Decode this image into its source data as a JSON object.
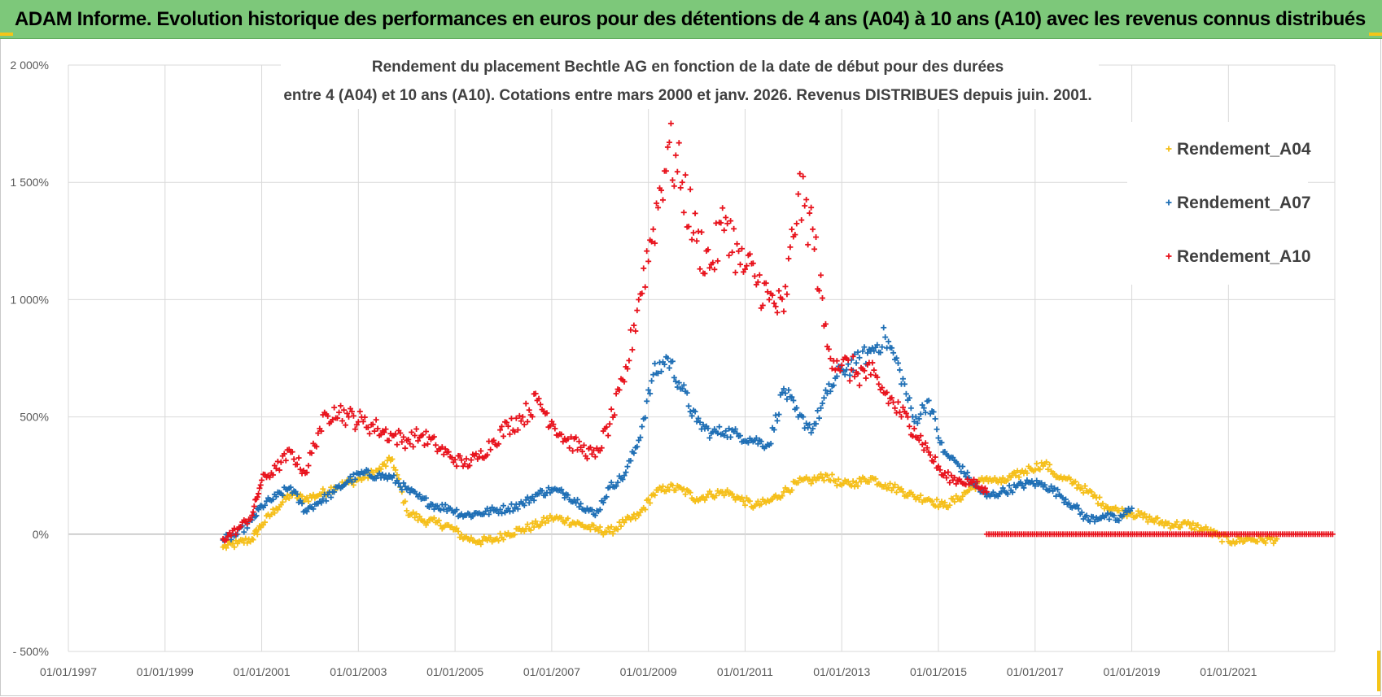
{
  "banner": {
    "title": "ADAM Informe. Evolution historique des performances en euros pour des détentions de 4 ans (A04) à 10 ans (A10) avec les revenus connus distribués"
  },
  "chart_data": {
    "type": "scatter",
    "title_line1": "Rendement du placement Bechtle AG en fonction de la date de début pour des durées",
    "title_line2": "entre 4 (A04) et 10 ans (A10). Cotations entre mars 2000 et janv. 2026. Revenus DISTRIBUES depuis juin. 2001.",
    "xlabel": "",
    "ylabel": "",
    "xlim": [
      1997.0,
      2023.2
    ],
    "ylim": [
      -500,
      2000
    ],
    "grid": true,
    "legend_position": "top-right",
    "x_tick_values": [
      1997,
      1999,
      2001,
      2003,
      2005,
      2007,
      2009,
      2011,
      2013,
      2015,
      2017,
      2019,
      2021
    ],
    "x_tick_labels": [
      "01/01/1997",
      "01/01/1999",
      "01/01/2001",
      "01/01/2003",
      "01/01/2005",
      "01/01/2007",
      "01/01/2009",
      "01/01/2011",
      "01/01/2013",
      "01/01/2015",
      "01/01/2017",
      "01/01/2019",
      "01/01/2021"
    ],
    "y_tick_values": [
      2000,
      1500,
      1000,
      500,
      0,
      -500
    ],
    "y_tick_labels": [
      "2 000%",
      "1 500%",
      "1 000%",
      "500%",
      "0%",
      "- 500%"
    ],
    "series": [
      {
        "name": "Rendement_A04",
        "color": "#f5bf1a",
        "marker": "+",
        "x": [
          2000.2,
          2000.5,
          2000.8,
          2001.0,
          2001.3,
          2001.6,
          2001.9,
          2002.2,
          2002.5,
          2002.8,
          2003.1,
          2003.4,
          2003.7,
          2004.0,
          2004.3,
          2004.6,
          2004.9,
          2005.2,
          2005.5,
          2005.8,
          2006.1,
          2006.4,
          2006.7,
          2007.0,
          2007.3,
          2007.6,
          2007.9,
          2008.2,
          2008.5,
          2008.8,
          2009.1,
          2009.4,
          2009.7,
          2010.0,
          2010.3,
          2010.6,
          2010.9,
          2011.2,
          2011.5,
          2011.8,
          2012.1,
          2012.4,
          2012.7,
          2013.0,
          2013.3,
          2013.6,
          2013.9,
          2014.2,
          2014.5,
          2014.8,
          2015.1,
          2015.4,
          2015.7,
          2016.0,
          2016.3,
          2016.6,
          2016.9,
          2017.2,
          2017.5,
          2017.8,
          2018.1,
          2018.4,
          2018.7,
          2019.0,
          2019.3,
          2019.6,
          2019.9,
          2020.2,
          2020.5,
          2020.8,
          2021.1,
          2021.4,
          2021.7,
          2022.0
        ],
        "y": [
          -55,
          -40,
          -20,
          40,
          110,
          170,
          150,
          170,
          200,
          220,
          240,
          270,
          320,
          100,
          60,
          50,
          30,
          -15,
          -30,
          -25,
          5,
          20,
          40,
          70,
          60,
          40,
          20,
          10,
          50,
          80,
          170,
          200,
          190,
          150,
          170,
          180,
          150,
          120,
          140,
          180,
          220,
          230,
          250,
          210,
          220,
          240,
          210,
          190,
          160,
          150,
          120,
          150,
          200,
          240,
          220,
          250,
          280,
          300,
          240,
          220,
          180,
          130,
          100,
          90,
          70,
          50,
          40,
          40,
          20,
          -10,
          -30,
          -20,
          -25,
          -20
        ]
      },
      {
        "name": "Rendement_A07",
        "color": "#1f6fb5",
        "marker": "+",
        "x": [
          2000.2,
          2000.5,
          2000.8,
          2001.0,
          2001.3,
          2001.6,
          2001.9,
          2002.2,
          2002.5,
          2002.8,
          2003.1,
          2003.4,
          2003.7,
          2004.0,
          2004.3,
          2004.6,
          2004.9,
          2005.2,
          2005.5,
          2005.8,
          2006.1,
          2006.4,
          2006.7,
          2007.0,
          2007.3,
          2007.6,
          2007.9,
          2008.2,
          2008.5,
          2008.8,
          2009.1,
          2009.4,
          2009.7,
          2010.0,
          2010.3,
          2010.6,
          2010.9,
          2011.2,
          2011.5,
          2011.8,
          2012.1,
          2012.4,
          2012.7,
          2013.0,
          2013.3,
          2013.6,
          2013.9,
          2014.2,
          2014.5,
          2014.8,
          2015.1,
          2015.4,
          2015.7,
          2016.0,
          2016.3,
          2016.6,
          2016.9,
          2017.2,
          2017.5,
          2017.8,
          2018.1,
          2018.4,
          2018.7,
          2019.0
        ],
        "y": [
          -25,
          0,
          60,
          120,
          160,
          200,
          100,
          140,
          180,
          230,
          260,
          250,
          240,
          190,
          150,
          120,
          110,
          80,
          90,
          100,
          110,
          130,
          170,
          190,
          170,
          130,
          80,
          200,
          250,
          400,
          680,
          750,
          620,
          480,
          430,
          440,
          420,
          400,
          380,
          620,
          500,
          450,
          600,
          700,
          730,
          780,
          840,
          700,
          480,
          570,
          350,
          300,
          220,
          160,
          180,
          200,
          220,
          210,
          170,
          120,
          60,
          80,
          60,
          110
        ]
      },
      {
        "name": "Rendement_A10",
        "color": "#e8121c",
        "marker": "+",
        "x": [
          2000.2,
          2000.5,
          2000.8,
          2001.0,
          2001.3,
          2001.6,
          2001.9,
          2002.2,
          2002.5,
          2002.8,
          2003.1,
          2003.4,
          2003.7,
          2004.0,
          2004.3,
          2004.6,
          2004.9,
          2005.2,
          2005.5,
          2005.8,
          2006.1,
          2006.4,
          2006.7,
          2007.0,
          2007.3,
          2007.6,
          2007.9,
          2008.2,
          2008.5,
          2008.8,
          2009.1,
          2009.4,
          2009.7,
          2010.0,
          2010.3,
          2010.6,
          2010.9,
          2011.2,
          2011.5,
          2011.8,
          2012.1,
          2012.4,
          2012.7,
          2013.0,
          2013.3,
          2013.6,
          2013.9,
          2014.2,
          2014.5,
          2014.8,
          2015.1,
          2015.4,
          2015.7,
          2016.0
        ],
        "y": [
          -20,
          20,
          80,
          230,
          280,
          350,
          260,
          450,
          540,
          500,
          480,
          450,
          420,
          400,
          420,
          380,
          330,
          300,
          330,
          400,
          460,
          500,
          570,
          480,
          400,
          370,
          330,
          470,
          650,
          1000,
          1300,
          1650,
          1500,
          1250,
          1150,
          1350,
          1150,
          1100,
          1000,
          950,
          1450,
          1300,
          800,
          720,
          690,
          680,
          600,
          520,
          450,
          350,
          250,
          230,
          220,
          180
        ]
      }
    ],
    "zero_band": {
      "series_name": "Rendement_A10",
      "x_start": 2016.0,
      "x_end": 2023.2,
      "value": 0
    }
  }
}
